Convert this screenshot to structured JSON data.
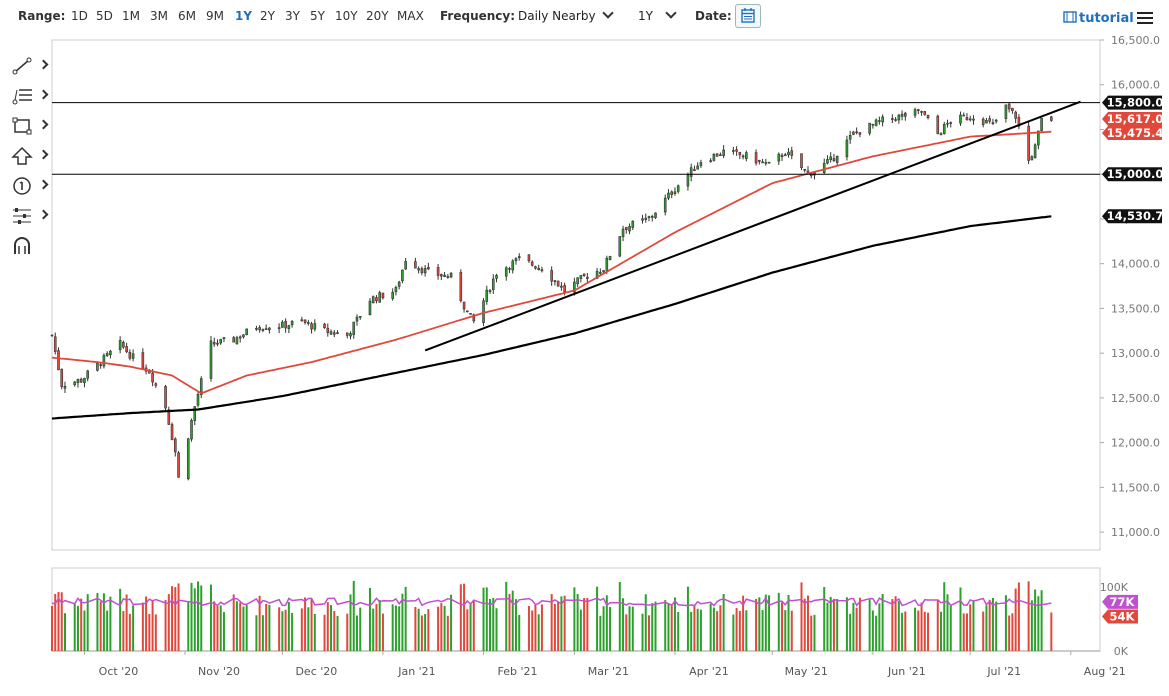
{
  "toolbar": {
    "range_label": "Range:",
    "ranges": [
      "1D",
      "5D",
      "1M",
      "3M",
      "6M",
      "9M",
      "1Y",
      "2Y",
      "3Y",
      "5Y",
      "10Y",
      "20Y",
      "MAX"
    ],
    "active_range": "1Y",
    "frequency_label": "Frequency:",
    "frequency_value": "Daily Nearby",
    "period_value": "1Y",
    "date_label": "Date:",
    "tutorial_label": "tutorial"
  },
  "colors": {
    "up": "#2ca02c",
    "down": "#e0483c",
    "ma50": "#e0483c",
    "ma200": "#000000",
    "volume_avg": "#c050d0",
    "badge_dark": "#111111",
    "badge_red": "#e0483c"
  },
  "chart_data": {
    "type": "candlestick",
    "title": "",
    "y_axis": {
      "range": [
        10800,
        16500
      ],
      "ticks": [
        11000,
        11500,
        12000,
        12500,
        13000,
        13500,
        14000,
        14500,
        15000,
        15500,
        16000,
        16500
      ],
      "tick_labels": [
        "11,000.0",
        "11,500.0",
        "12,000.0",
        "12,500.0",
        "13,000.0",
        "13,500.0",
        "14,000.0",
        "14,500.0",
        "15,000.0",
        "15,500.0",
        "16,000.0",
        "16,500.0"
      ]
    },
    "x_axis": {
      "start": "2020-09-21",
      "end": "2021-08-10",
      "tick_labels": [
        "Oct '20",
        "Nov '20",
        "Dec '20",
        "Jan '21",
        "Feb '21",
        "Mar '21",
        "Apr '21",
        "May '21",
        "Jun '21",
        "Jul '21",
        "Aug '21"
      ],
      "tick_dates": [
        "2020-10-01",
        "2020-11-01",
        "2020-12-01",
        "2021-01-01",
        "2021-02-01",
        "2021-03-01",
        "2021-04-01",
        "2021-05-01",
        "2021-06-01",
        "2021-07-01",
        "2021-08-01"
      ]
    },
    "close_anchors": [
      [
        "2020-09-21",
        13200
      ],
      [
        "2020-09-24",
        12650
      ],
      [
        "2020-09-30",
        12700
      ],
      [
        "2020-10-06",
        12900
      ],
      [
        "2020-10-12",
        13100
      ],
      [
        "2020-10-16",
        12950
      ],
      [
        "2020-10-21",
        12800
      ],
      [
        "2020-10-26",
        12400
      ],
      [
        "2020-10-29",
        11900
      ],
      [
        "2020-10-30",
        11600
      ],
      [
        "2020-11-04",
        12400
      ],
      [
        "2020-11-09",
        13100
      ],
      [
        "2020-11-16",
        13150
      ],
      [
        "2020-11-23",
        13300
      ],
      [
        "2020-11-30",
        13300
      ],
      [
        "2020-12-07",
        13350
      ],
      [
        "2020-12-14",
        13250
      ],
      [
        "2020-12-21",
        13200
      ],
      [
        "2020-12-28",
        13600
      ],
      [
        "2021-01-05",
        13700
      ],
      [
        "2021-01-08",
        14050
      ],
      [
        "2021-01-15",
        13900
      ],
      [
        "2021-01-22",
        13850
      ],
      [
        "2021-01-27",
        13450
      ],
      [
        "2021-01-29",
        13350
      ],
      [
        "2021-02-05",
        13900
      ],
      [
        "2021-02-12",
        14050
      ],
      [
        "2021-02-19",
        13950
      ],
      [
        "2021-02-26",
        13700
      ],
      [
        "2021-03-04",
        13850
      ],
      [
        "2021-03-10",
        13950
      ],
      [
        "2021-03-16",
        14400
      ],
      [
        "2021-03-24",
        14500
      ],
      [
        "2021-03-31",
        14800
      ],
      [
        "2021-04-09",
        15150
      ],
      [
        "2021-04-16",
        15250
      ],
      [
        "2021-04-23",
        15200
      ],
      [
        "2021-04-30",
        15100
      ],
      [
        "2021-05-05",
        15250
      ],
      [
        "2021-05-12",
        15000
      ],
      [
        "2021-05-19",
        15150
      ],
      [
        "2021-05-26",
        15450
      ],
      [
        "2021-06-04",
        15600
      ],
      [
        "2021-06-10",
        15650
      ],
      [
        "2021-06-16",
        15700
      ],
      [
        "2021-06-21",
        15450
      ],
      [
        "2021-06-25",
        15600
      ],
      [
        "2021-07-02",
        15650
      ],
      [
        "2021-07-08",
        15550
      ],
      [
        "2021-07-12",
        15750
      ],
      [
        "2021-07-15",
        15650
      ],
      [
        "2021-07-19",
        15150
      ],
      [
        "2021-07-21",
        15300
      ],
      [
        "2021-07-23",
        15600
      ],
      [
        "2021-07-26",
        15617
      ]
    ],
    "ma50_anchors": [
      [
        "2020-09-21",
        12950
      ],
      [
        "2020-10-05",
        12900
      ],
      [
        "2020-10-15",
        12850
      ],
      [
        "2020-10-28",
        12750
      ],
      [
        "2020-11-06",
        12550
      ],
      [
        "2020-11-20",
        12750
      ],
      [
        "2020-12-10",
        12900
      ],
      [
        "2021-01-05",
        13150
      ],
      [
        "2021-02-01",
        13450
      ],
      [
        "2021-03-01",
        13700
      ],
      [
        "2021-04-01",
        14350
      ],
      [
        "2021-05-01",
        14900
      ],
      [
        "2021-06-01",
        15200
      ],
      [
        "2021-07-01",
        15420
      ],
      [
        "2021-07-26",
        15475
      ]
    ],
    "ma200_anchors": [
      [
        "2020-09-21",
        12270
      ],
      [
        "2020-10-15",
        12330
      ],
      [
        "2020-11-05",
        12370
      ],
      [
        "2020-12-01",
        12520
      ],
      [
        "2021-01-01",
        12750
      ],
      [
        "2021-02-01",
        12980
      ],
      [
        "2021-03-01",
        13220
      ],
      [
        "2021-04-01",
        13550
      ],
      [
        "2021-05-01",
        13900
      ],
      [
        "2021-06-01",
        14200
      ],
      [
        "2021-07-01",
        14420
      ],
      [
        "2021-07-26",
        14530
      ]
    ],
    "horizontal_lines": [
      15800,
      15000
    ],
    "trendline": {
      "from": [
        "2021-01-14",
        13030
      ],
      "to": [
        "2021-08-04",
        15810
      ]
    },
    "badges": [
      {
        "value": 15800,
        "label": "15,800.0",
        "style": "dark"
      },
      {
        "value": 15617,
        "label": "15,617.0",
        "style": "red"
      },
      {
        "value": 15475,
        "label": "15,475.4",
        "style": "red"
      },
      {
        "value": 15000,
        "label": "15,000.0",
        "style": "dark"
      },
      {
        "value": 14530.7,
        "label": "14,530.7",
        "style": "dark"
      }
    ],
    "volume": {
      "y_ticks": [
        0,
        100000
      ],
      "tick_labels": [
        "0K",
        "100K"
      ],
      "range": [
        0,
        130000
      ],
      "avg_value": 77000,
      "last_value": 54000,
      "badges": [
        {
          "value": 77000,
          "label": "77K",
          "style": "purple"
        },
        {
          "value": 54000,
          "label": "54K",
          "style": "red"
        }
      ]
    }
  }
}
